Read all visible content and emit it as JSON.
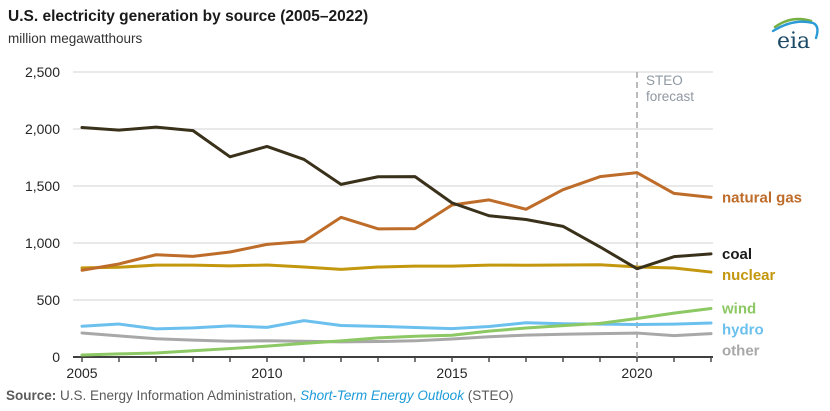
{
  "header": {
    "title": "U.S. electricity generation by source (2005–2022)",
    "subtitle": "million megawatthours",
    "logo_text": "eia"
  },
  "annotation": {
    "line1": "STEO",
    "line2": "forecast",
    "at_year": 2020,
    "color": "#8f98a1"
  },
  "footer": {
    "source_label": "Source:",
    "source_text": " U.S. Energy Information Administration, ",
    "link_text": "Short-Term Energy Outlook",
    "suffix": " (STEO)"
  },
  "colors": {
    "grid": "#dcdcdc",
    "axis": "#404040",
    "tick_label": "#262626",
    "forecast_divider": "#ababab",
    "link_blue": "#1d9bd8",
    "logo_blue": "#1c4a66",
    "logo_swoosh_green": "#76b043",
    "logo_swoosh_blue": "#2d9bd5"
  },
  "chart_data": {
    "type": "line",
    "title": "U.S. electricity generation by source (2005–2022)",
    "ylabel": "million megawatthours",
    "x": [
      2005,
      2006,
      2007,
      2008,
      2009,
      2010,
      2011,
      2012,
      2013,
      2014,
      2015,
      2016,
      2017,
      2018,
      2019,
      2020,
      2021,
      2022
    ],
    "x_tick_labels": [
      2005,
      2010,
      2015,
      2020
    ],
    "ylim": [
      0,
      2500
    ],
    "y_ticks": [
      0,
      500,
      1000,
      1500,
      2000,
      2500
    ],
    "grid": true,
    "legend_position": "right-of-lines",
    "forecast_divider_year": 2020,
    "series": [
      {
        "name": "other",
        "color": "#a8a8a8",
        "values": [
          211,
          185,
          160,
          148,
          138,
          143,
          138,
          133,
          136,
          142,
          158,
          178,
          192,
          200,
          205,
          210,
          188,
          205
        ]
      },
      {
        "name": "hydro",
        "color": "#6cc0ee",
        "values": [
          270,
          289,
          247,
          255,
          273,
          260,
          319,
          276,
          269,
          259,
          249,
          268,
          300,
          292,
          288,
          285,
          288,
          298
        ]
      },
      {
        "name": "wind",
        "color": "#8cc863",
        "values": [
          18,
          27,
          35,
          55,
          74,
          95,
          120,
          141,
          168,
          182,
          191,
          227,
          254,
          275,
          295,
          338,
          385,
          425
        ]
      },
      {
        "name": "nuclear",
        "color": "#c3970e",
        "values": [
          782,
          787,
          806,
          806,
          799,
          807,
          790,
          769,
          789,
          797,
          797,
          806,
          805,
          807,
          809,
          790,
          781,
          745
        ]
      },
      {
        "name": "natural gas",
        "color": "#be6c29",
        "values": [
          761,
          816,
          897,
          883,
          921,
          988,
          1013,
          1225,
          1124,
          1126,
          1333,
          1378,
          1296,
          1468,
          1582,
          1617,
          1435,
          1400
        ]
      },
      {
        "name": "coal",
        "color": "#3a311b",
        "label_color": "#1a1a1a",
        "values": [
          2013,
          1990,
          2016,
          1986,
          1756,
          1847,
          1733,
          1514,
          1581,
          1582,
          1352,
          1239,
          1206,
          1146,
          966,
          774,
          880,
          905
        ]
      }
    ]
  }
}
